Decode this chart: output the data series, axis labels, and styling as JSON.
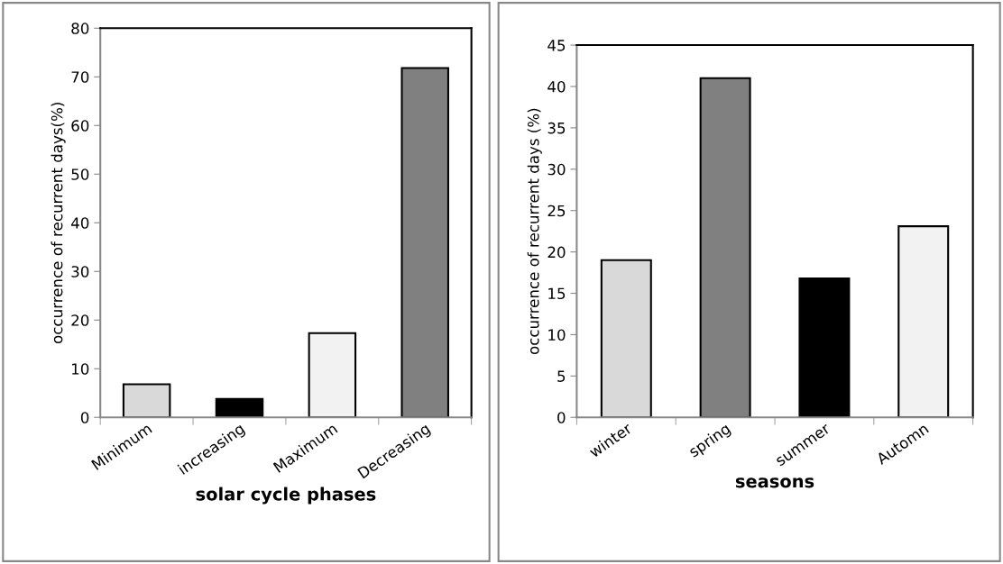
{
  "chart_data": [
    {
      "type": "bar",
      "xlabel": "solar cycle phases",
      "ylabel": "occurrence of recurrent days(%)",
      "categories": [
        "Minimum",
        "increasing",
        "Maximum",
        "Decreasing"
      ],
      "values": [
        6.8,
        3.8,
        17.3,
        71.8
      ],
      "colors": [
        "#d9d9d9",
        "#000000",
        "#f2f2f2",
        "#808080"
      ],
      "ylim": [
        0,
        80
      ],
      "yticks": [
        0,
        10,
        20,
        30,
        40,
        50,
        60,
        70,
        80
      ],
      "grid": false,
      "legend": false
    },
    {
      "type": "bar",
      "xlabel": "seasons",
      "ylabel": "occurrence of recurrent days (%)",
      "categories": [
        "winter",
        "spring",
        "summer",
        "Automn"
      ],
      "values": [
        19.0,
        41.0,
        16.8,
        23.1
      ],
      "colors": [
        "#d9d9d9",
        "#808080",
        "#000000",
        "#f2f2f2"
      ],
      "ylim": [
        0,
        45
      ],
      "yticks": [
        0,
        5,
        10,
        15,
        20,
        25,
        30,
        35,
        40,
        45
      ],
      "grid": false,
      "legend": false
    }
  ]
}
